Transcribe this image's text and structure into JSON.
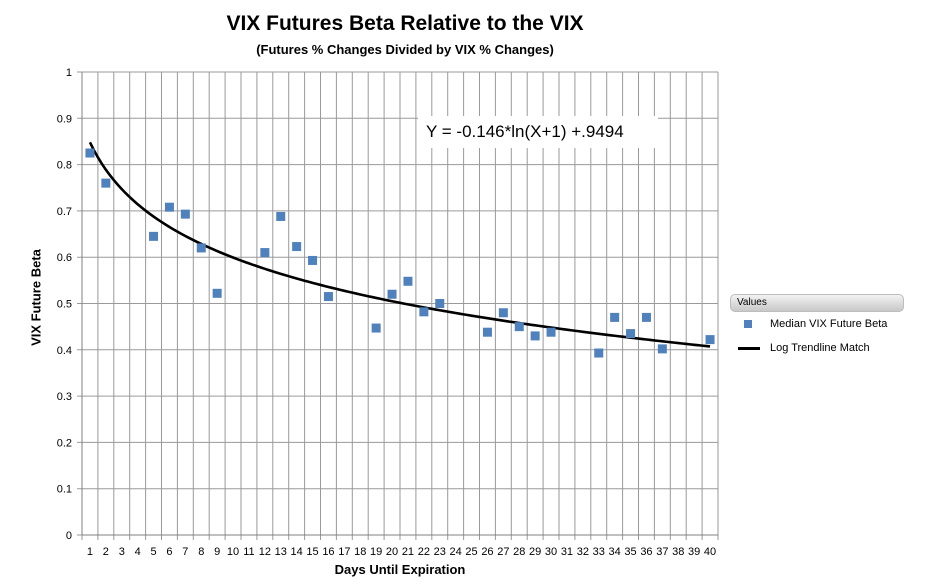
{
  "chart_data": {
    "type": "scatter",
    "title": "VIX Futures Beta Relative to the VIX",
    "subtitle": "(Futures % Changes Divided by VIX % Changes)",
    "xlabel": "Days Until Expiration",
    "ylabel": "VIX Future Beta",
    "xlim": [
      1,
      40
    ],
    "ylim": [
      0,
      1
    ],
    "x_ticks": [
      1,
      2,
      3,
      4,
      5,
      6,
      7,
      8,
      9,
      10,
      11,
      12,
      13,
      14,
      15,
      16,
      17,
      18,
      19,
      20,
      21,
      22,
      23,
      24,
      25,
      26,
      27,
      28,
      29,
      30,
      31,
      32,
      33,
      34,
      35,
      36,
      37,
      38,
      39,
      40
    ],
    "y_ticks": [
      0,
      0.1,
      0.2,
      0.3,
      0.4,
      0.5,
      0.6,
      0.7,
      0.8,
      0.9,
      1
    ],
    "grid": true,
    "legend": {
      "title": "Values",
      "position": "right"
    },
    "equation": "Y = -0.146*ln(X+1) +.9494",
    "series": [
      {
        "name": "Median VIX Future Beta",
        "kind": "scatter",
        "color": "#4f81bd",
        "points": [
          [
            1,
            0.825
          ],
          [
            2,
            0.76
          ],
          [
            5,
            0.645
          ],
          [
            6,
            0.708
          ],
          [
            7,
            0.693
          ],
          [
            8,
            0.62
          ],
          [
            9,
            0.522
          ],
          [
            12,
            0.61
          ],
          [
            13,
            0.688
          ],
          [
            14,
            0.623
          ],
          [
            15,
            0.593
          ],
          [
            16,
            0.515
          ],
          [
            19,
            0.447
          ],
          [
            20,
            0.52
          ],
          [
            21,
            0.548
          ],
          [
            22,
            0.482
          ],
          [
            23,
            0.5
          ],
          [
            26,
            0.438
          ],
          [
            27,
            0.48
          ],
          [
            28,
            0.45
          ],
          [
            29,
            0.43
          ],
          [
            30,
            0.438
          ],
          [
            33,
            0.393
          ],
          [
            34,
            0.47
          ],
          [
            35,
            0.435
          ],
          [
            36,
            0.47
          ],
          [
            37,
            0.402
          ],
          [
            40,
            0.422
          ]
        ]
      },
      {
        "name": "Log Trendline Match",
        "kind": "line",
        "color": "#000000",
        "formula": {
          "a": -0.146,
          "b": 0.9494,
          "function": "ln(x+1)"
        }
      }
    ]
  }
}
